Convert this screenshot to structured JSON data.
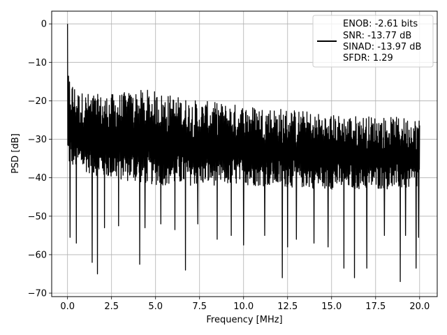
{
  "chart_data": {
    "type": "line",
    "title": "",
    "xlabel": "Frequency [MHz]",
    "ylabel": "PSD [dB]",
    "xlim": [
      -0.9,
      21.0
    ],
    "ylim": [
      -70.9,
      3.3
    ],
    "xticks": [
      0.0,
      2.5,
      5.0,
      7.5,
      10.0,
      12.5,
      15.0,
      17.5,
      20.0
    ],
    "xtick_labels": [
      "0.0",
      "2.5",
      "5.0",
      "7.5",
      "10.0",
      "12.5",
      "15.0",
      "17.5",
      "20.0"
    ],
    "yticks": [
      0,
      -10,
      -20,
      -30,
      -40,
      -50,
      -60,
      -70
    ],
    "ytick_labels": [
      "0",
      "−10",
      "−20",
      "−30",
      "−40",
      "−50",
      "−60",
      "−70"
    ],
    "grid": true,
    "legend": {
      "placement": "top-right",
      "lines": [
        "ENOB: -2.61 bits",
        "SNR: -13.77 dB",
        "SINAD: -13.97 dB",
        "SFDR: 1.29"
      ]
    },
    "series": [
      {
        "color": "#000000",
        "spectrum": {
          "x_start": 0.0,
          "x_end": 20.0,
          "peak": {
            "x": 0.0,
            "y": 0.0
          },
          "upper_envelope": [
            [
              0.05,
              -13.5
            ],
            [
              0.3,
              -15.0
            ],
            [
              0.6,
              -17.5
            ],
            [
              2.0,
              -18.5
            ],
            [
              4.5,
              -17.0
            ],
            [
              7.5,
              -20.0
            ],
            [
              10.0,
              -21.0
            ],
            [
              12.5,
              -22.0
            ],
            [
              15.0,
              -23.5
            ],
            [
              17.5,
              -24.0
            ],
            [
              20.0,
              -24.5
            ]
          ],
          "lower_envelope": [
            [
              0.05,
              -37.0
            ],
            [
              2.0,
              -40.0
            ],
            [
              5.0,
              -42.0
            ],
            [
              10.0,
              -42.0
            ],
            [
              15.0,
              -43.0
            ],
            [
              20.0,
              -43.0
            ]
          ],
          "dips": [
            [
              0.15,
              -55.5
            ],
            [
              0.5,
              -57.0
            ],
            [
              1.4,
              -62.0
            ],
            [
              1.7,
              -65.0
            ],
            [
              2.1,
              -53.0
            ],
            [
              2.9,
              -52.5
            ],
            [
              4.1,
              -62.5
            ],
            [
              4.4,
              -53.0
            ],
            [
              5.3,
              -52.0
            ],
            [
              6.1,
              -53.5
            ],
            [
              6.7,
              -64.0
            ],
            [
              7.4,
              -52.0
            ],
            [
              8.5,
              -56.0
            ],
            [
              9.3,
              -55.0
            ],
            [
              10.0,
              -57.5
            ],
            [
              11.2,
              -55.0
            ],
            [
              12.2,
              -66.0
            ],
            [
              12.5,
              -58.0
            ],
            [
              13.0,
              -56.0
            ],
            [
              14.0,
              -57.0
            ],
            [
              14.8,
              -58.0
            ],
            [
              15.7,
              -63.5
            ],
            [
              16.3,
              -66.0
            ],
            [
              17.0,
              -63.5
            ],
            [
              18.0,
              -55.0
            ],
            [
              18.9,
              -67.0
            ],
            [
              19.2,
              -55.0
            ],
            [
              19.8,
              -63.5
            ],
            [
              19.95,
              -55.5
            ]
          ]
        }
      }
    ]
  }
}
